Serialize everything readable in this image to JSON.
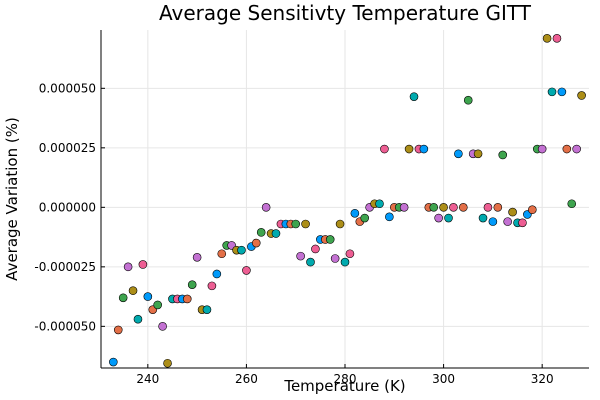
{
  "chart_data": {
    "type": "scatter",
    "title": "Average Sensitivty Temperature GITT",
    "xlabel": "Temperature (K)",
    "ylabel": "Average Variation (%)",
    "xlim": [
      230.5,
      329.5
    ],
    "ylim": [
      -6.75e-05,
      7.45e-05
    ],
    "xticks": [
      240,
      260,
      280,
      300,
      320
    ],
    "xtick_labels": [
      "240",
      "260",
      "280",
      "300",
      "320"
    ],
    "yticks": [
      -5e-05,
      -2.5e-05,
      0,
      2.5e-05,
      5e-05
    ],
    "ytick_labels": [
      "-0.000050",
      "-0.000025",
      "0.000000",
      "0.000025",
      "0.000050"
    ],
    "grid": true,
    "legend": "none",
    "palette": [
      "#009AFA",
      "#E36F47",
      "#3EA44E",
      "#C371D2",
      "#AC8E18",
      "#00AAAE",
      "#ED5E93"
    ],
    "points": [
      {
        "x": 233.0,
        "y": -6.5e-05
      },
      {
        "x": 234.0,
        "y": -5.15e-05
      },
      {
        "x": 235.0,
        "y": -3.8e-05
      },
      {
        "x": 236.0,
        "y": -2.5e-05
      },
      {
        "x": 237.0,
        "y": -3.5e-05
      },
      {
        "x": 238.0,
        "y": -4.7e-05
      },
      {
        "x": 239.0,
        "y": -2.4e-05
      },
      {
        "x": 240.0,
        "y": -3.75e-05
      },
      {
        "x": 241.0,
        "y": -4.3e-05
      },
      {
        "x": 242.0,
        "y": -4.1e-05
      },
      {
        "x": 243.0,
        "y": -5e-05
      },
      {
        "x": 244.0,
        "y": -6.55e-05
      },
      {
        "x": 245.0,
        "y": -3.85e-05
      },
      {
        "x": 246.0,
        "y": -3.85e-05
      },
      {
        "x": 247.0,
        "y": -3.85e-05
      },
      {
        "x": 248.0,
        "y": -3.85e-05
      },
      {
        "x": 249.0,
        "y": -3.25e-05
      },
      {
        "x": 250.0,
        "y": -2.1e-05
      },
      {
        "x": 251.0,
        "y": -4.3e-05
      },
      {
        "x": 252.0,
        "y": -4.3e-05
      },
      {
        "x": 253.0,
        "y": -3.3e-05
      },
      {
        "x": 254.0,
        "y": -2.8e-05
      },
      {
        "x": 255.0,
        "y": -1.95e-05
      },
      {
        "x": 256.0,
        "y": -1.6e-05
      },
      {
        "x": 257.0,
        "y": -1.6e-05
      },
      {
        "x": 258.0,
        "y": -1.8e-05
      },
      {
        "x": 259.0,
        "y": -1.8e-05
      },
      {
        "x": 260.0,
        "y": -2.65e-05
      },
      {
        "x": 261.0,
        "y": -1.65e-05
      },
      {
        "x": 262.0,
        "y": -1.5e-05
      },
      {
        "x": 263.0,
        "y": -1.05e-05
      },
      {
        "x": 264.0,
        "y": 0.0
      },
      {
        "x": 265.0,
        "y": -1.1e-05
      },
      {
        "x": 266.0,
        "y": -1.1e-05
      },
      {
        "x": 267.0,
        "y": -7e-06
      },
      {
        "x": 268.0,
        "y": -7e-06
      },
      {
        "x": 269.0,
        "y": -7e-06
      },
      {
        "x": 270.0,
        "y": -7e-06
      },
      {
        "x": 271.0,
        "y": -2.05e-05
      },
      {
        "x": 272.0,
        "y": -7e-06
      },
      {
        "x": 273.0,
        "y": -2.3e-05
      },
      {
        "x": 274.0,
        "y": -1.75e-05
      },
      {
        "x": 275.0,
        "y": -1.35e-05
      },
      {
        "x": 276.0,
        "y": -1.35e-05
      },
      {
        "x": 277.0,
        "y": -1.35e-05
      },
      {
        "x": 278.0,
        "y": -2.15e-05
      },
      {
        "x": 279.0,
        "y": -7e-06
      },
      {
        "x": 280.0,
        "y": -2.3e-05
      },
      {
        "x": 281.0,
        "y": -1.95e-05
      },
      {
        "x": 282.0,
        "y": -2.5e-06
      },
      {
        "x": 283.0,
        "y": -6e-06
      },
      {
        "x": 284.0,
        "y": -4.5e-06
      },
      {
        "x": 285.0,
        "y": 0.0
      },
      {
        "x": 286.0,
        "y": 1.5e-06
      },
      {
        "x": 287.0,
        "y": 1.5e-06
      },
      {
        "x": 288.0,
        "y": 2.45e-05
      },
      {
        "x": 289.0,
        "y": -4e-06
      },
      {
        "x": 290.0,
        "y": 0.0
      },
      {
        "x": 291.0,
        "y": 0.0
      },
      {
        "x": 292.0,
        "y": 0.0
      },
      {
        "x": 293.0,
        "y": 2.45e-05
      },
      {
        "x": 294.0,
        "y": 4.65e-05
      },
      {
        "x": 295.0,
        "y": 2.45e-05
      },
      {
        "x": 296.0,
        "y": 2.45e-05
      },
      {
        "x": 297.0,
        "y": 0.0
      },
      {
        "x": 298.0,
        "y": 0.0
      },
      {
        "x": 299.0,
        "y": -4.5e-06
      },
      {
        "x": 300.0,
        "y": 0.0
      },
      {
        "x": 301.0,
        "y": -4.5e-06
      },
      {
        "x": 302.0,
        "y": 0.0
      },
      {
        "x": 303.0,
        "y": 2.25e-05
      },
      {
        "x": 304.0,
        "y": 0.0
      },
      {
        "x": 305.0,
        "y": 4.5e-05
      },
      {
        "x": 306.0,
        "y": 2.25e-05
      },
      {
        "x": 307.0,
        "y": 2.25e-05
      },
      {
        "x": 308.0,
        "y": -4.5e-06
      },
      {
        "x": 309.0,
        "y": 0.0
      },
      {
        "x": 310.0,
        "y": -6e-06
      },
      {
        "x": 311.0,
        "y": 0.0
      },
      {
        "x": 312.0,
        "y": 2.2e-05
      },
      {
        "x": 313.0,
        "y": -6e-06
      },
      {
        "x": 314.0,
        "y": -2e-06
      },
      {
        "x": 315.0,
        "y": -6.5e-06
      },
      {
        "x": 316.0,
        "y": -6.5e-06
      },
      {
        "x": 317.0,
        "y": -3e-06
      },
      {
        "x": 318.0,
        "y": -1e-06
      },
      {
        "x": 319.0,
        "y": 2.45e-05
      },
      {
        "x": 320.0,
        "y": 2.45e-05
      },
      {
        "x": 321.0,
        "y": 7.1e-05
      },
      {
        "x": 322.0,
        "y": 4.85e-05
      },
      {
        "x": 323.0,
        "y": 7.1e-05
      },
      {
        "x": 324.0,
        "y": 4.85e-05
      },
      {
        "x": 325.0,
        "y": 2.45e-05
      },
      {
        "x": 326.0,
        "y": 1.5e-06
      },
      {
        "x": 327.0,
        "y": 2.45e-05
      },
      {
        "x": 328.0,
        "y": 4.7e-05
      }
    ]
  }
}
